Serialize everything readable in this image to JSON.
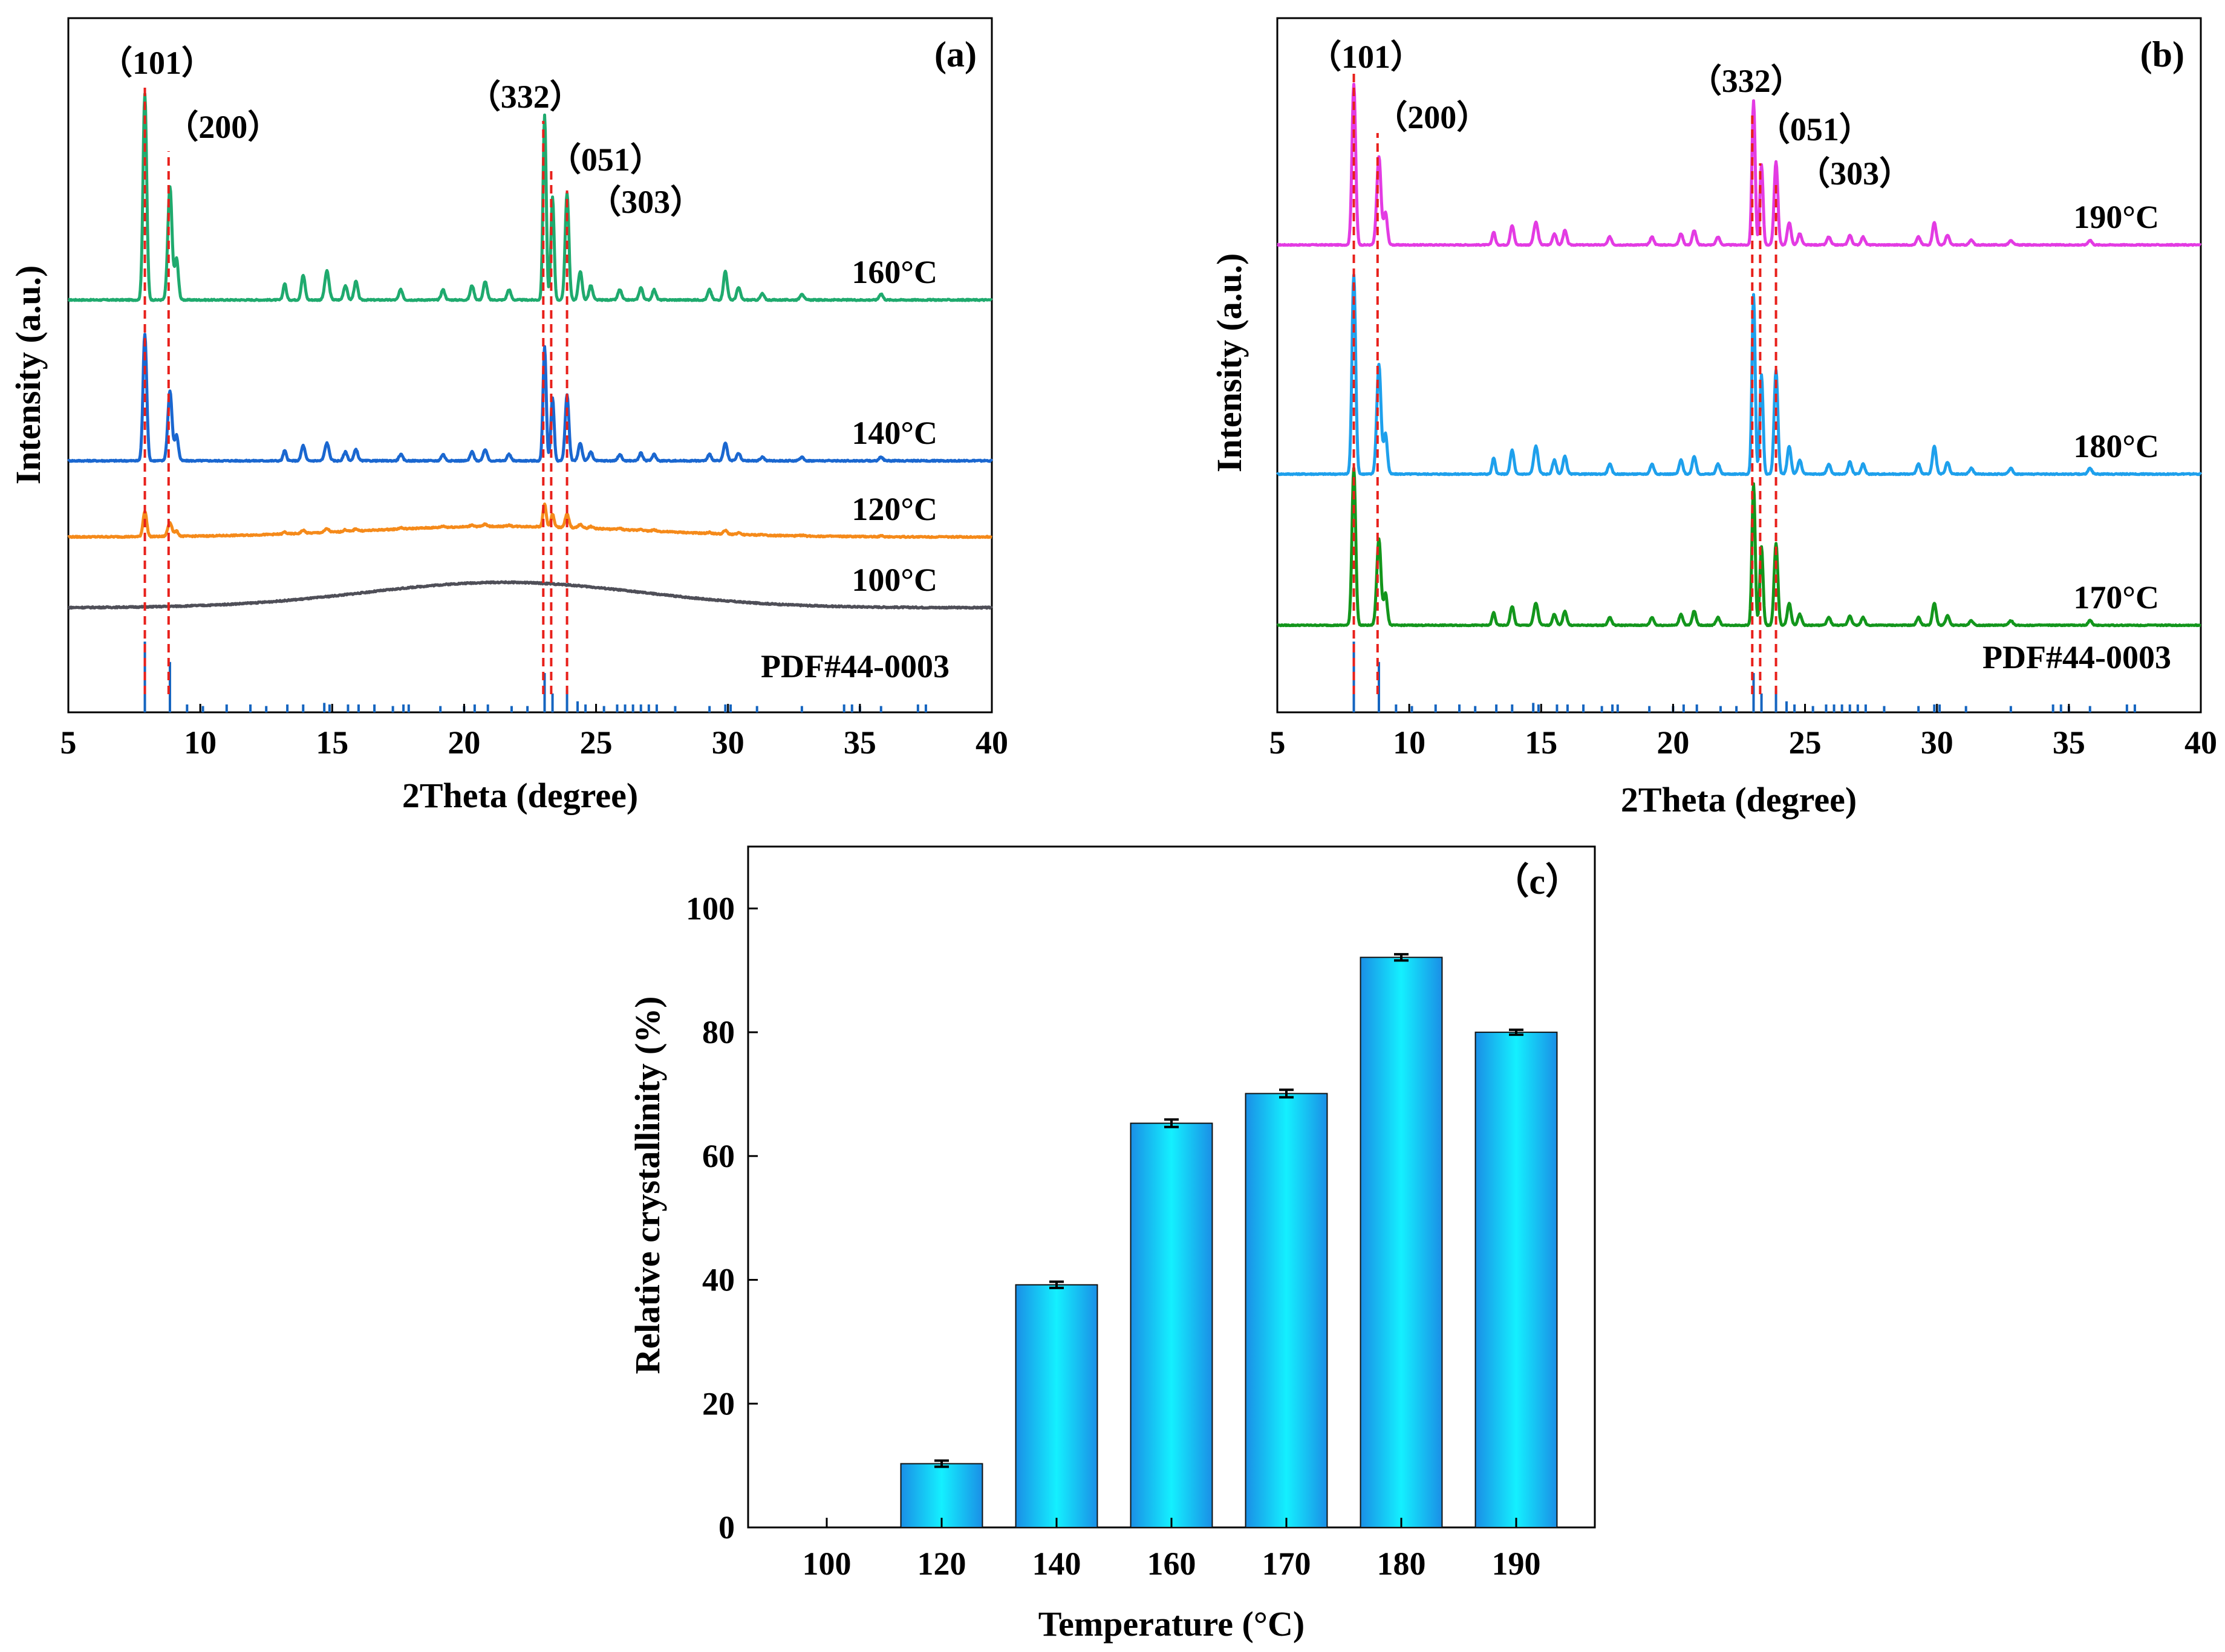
{
  "figure": {
    "panel_a_label": "(a)",
    "panel_b_label": "(b)",
    "panel_c_label": "（c）"
  },
  "chart_data": [
    {
      "type": "line",
      "panel": "(a)",
      "title": "",
      "xlabel": "2Theta (degree)",
      "ylabel": "Intensity (a.u.)",
      "xlim": [
        5,
        40
      ],
      "x_ticks": [
        5,
        10,
        15,
        20,
        25,
        30,
        35,
        40
      ],
      "series": [
        {
          "name": "160°C",
          "color": "#1faa6e",
          "hump_center": 0,
          "hump_height": 0.0,
          "scale": 1.0
        },
        {
          "name": "140°C",
          "color": "#1a67d0",
          "hump_center": 0,
          "hump_height": 0.0,
          "scale": 0.6
        },
        {
          "name": "120°C",
          "color": "#f58a1a",
          "hump_center": 21.5,
          "hump_height": 0.05,
          "scale": 0.12
        },
        {
          "name": "100°C",
          "color": "#4f4f58",
          "hump_center": 21.5,
          "hump_height": 0.12,
          "scale": 0.0
        }
      ],
      "reference": {
        "name": "PDF#44-0003",
        "color": "#1565c0"
      },
      "hkl_labels": [
        {
          "label": "（101）",
          "x": 7.9
        },
        {
          "label": "（200）",
          "x": 8.8
        },
        {
          "label": "（332）",
          "x": 23.0
        },
        {
          "label": "（051）",
          "x": 23.3
        },
        {
          "label": "（303）",
          "x": 23.9
        }
      ]
    },
    {
      "type": "line",
      "panel": "(b)",
      "title": "",
      "xlabel": "2Theta (degree)",
      "ylabel": "Intensity (a.u.)",
      "xlim": [
        5,
        40
      ],
      "x_ticks": [
        5,
        10,
        15,
        20,
        25,
        30,
        35,
        40
      ],
      "series": [
        {
          "name": "190°C",
          "color": "#e33be3",
          "hump_center": 0,
          "hump_height": 0.0,
          "scale": 1.0
        },
        {
          "name": "180°C",
          "color": "#1ea0ec",
          "hump_center": 0,
          "hump_height": 0.0,
          "scale": 1.1
        },
        {
          "name": "170°C",
          "color": "#13961c",
          "hump_center": 0,
          "hump_height": 0.0,
          "scale": 1.0
        }
      ],
      "reference": {
        "name": "PDF#44-0003",
        "color": "#1565c0"
      },
      "hkl_labels": [
        {
          "label": "（101）",
          "x": 7.9
        },
        {
          "label": "（200）",
          "x": 8.8
        },
        {
          "label": "（332）",
          "x": 23.0
        },
        {
          "label": "（051）",
          "x": 23.3
        },
        {
          "label": "（303）",
          "x": 23.9
        }
      ]
    },
    {
      "type": "bar",
      "panel": "（c）",
      "title": "",
      "xlabel": "Temperature (°C)",
      "ylabel": "Relative crystallinity (%)",
      "categories": [
        "100",
        "120",
        "140",
        "160",
        "170",
        "180",
        "190"
      ],
      "values": [
        0,
        10.3,
        39.2,
        65.3,
        70.1,
        92.1,
        80.0
      ],
      "errors": [
        0,
        0.5,
        0.5,
        0.6,
        0.6,
        0.5,
        0.4
      ],
      "ylim": [
        0,
        110
      ],
      "y_ticks": [
        0,
        20,
        40,
        60,
        80,
        100
      ]
    }
  ]
}
